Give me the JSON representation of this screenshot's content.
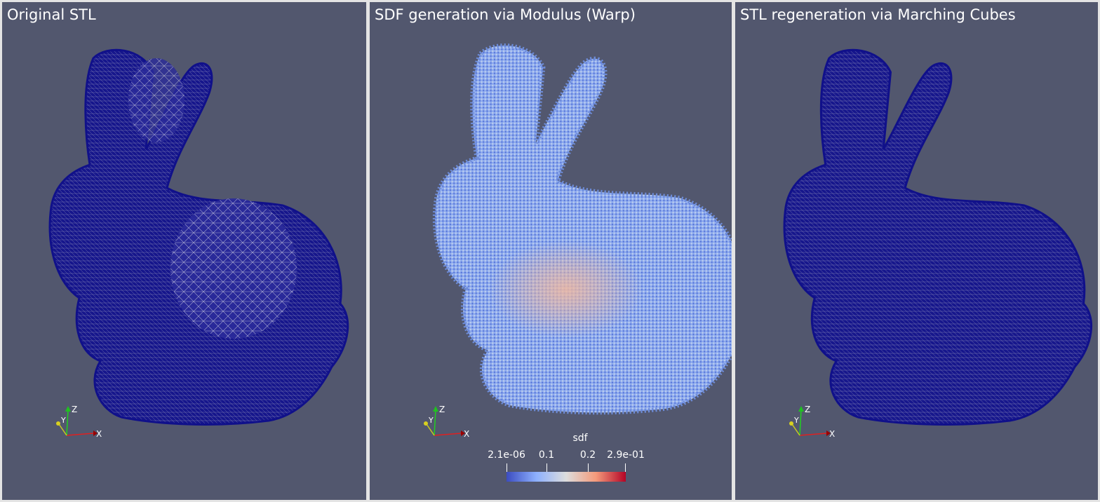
{
  "views": [
    {
      "title": "Original STL",
      "style": "wireframe"
    },
    {
      "title": "SDF generation via Modulus (Warp)",
      "style": "points"
    },
    {
      "title": "STL regeneration via Marching Cubes",
      "style": "wireframe"
    }
  ],
  "axes": {
    "x": "X",
    "y": "Y",
    "z": "Z"
  },
  "colorbar": {
    "label": "sdf",
    "ticks": [
      "2.1e-06",
      "0.1",
      "0.2",
      "2.9e-01"
    ],
    "colors": [
      "#3b4cc0",
      "#8db0fe",
      "#dddddd",
      "#f49a7b",
      "#b40426"
    ]
  },
  "colors": {
    "mesh": "#10108a",
    "background": "#52576e"
  }
}
